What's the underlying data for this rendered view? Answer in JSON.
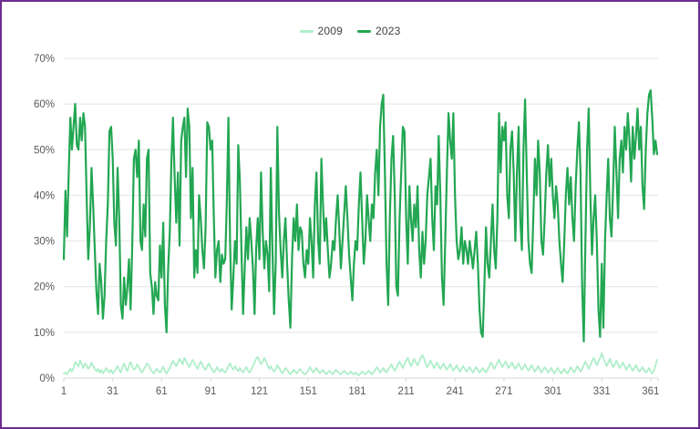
{
  "page": {
    "background": "#ffffff",
    "border_color": "#6c2d91"
  },
  "legend": {
    "position": "top-center",
    "items": [
      {
        "label": "2009",
        "color": "#aeeec9"
      },
      {
        "label": "2023",
        "color": "#22a652"
      }
    ]
  },
  "chart_data": {
    "type": "line",
    "title": "",
    "xlabel": "",
    "ylabel": "",
    "x_start": 1,
    "xlim": [
      1,
      365
    ],
    "ylim": [
      0,
      70
    ],
    "x_ticks": [
      1,
      31,
      61,
      91,
      121,
      151,
      181,
      211,
      241,
      271,
      301,
      331,
      361
    ],
    "y_ticks": [
      0,
      10,
      20,
      30,
      40,
      50,
      60,
      70
    ],
    "y_tick_labels": [
      "0%",
      "10%",
      "20%",
      "30%",
      "40%",
      "50%",
      "60%",
      "70%"
    ],
    "grid": "horizontal",
    "gridline_color": "#e4e4e4",
    "axis_line_color": "#d9d9d9",
    "tick_color": "#d9d9d9",
    "axis_label_color": "#595959",
    "legend_position": "top-center",
    "series": [
      {
        "name": "2009",
        "color": "#aeeec9",
        "width": 1.8,
        "values": [
          1,
          1.2,
          0.8,
          1.5,
          2,
          1.4,
          2.2,
          3.5,
          3,
          2.5,
          3.8,
          3,
          2.2,
          3.2,
          2.8,
          2,
          2.5,
          3.4,
          2.6,
          2,
          1.5,
          2,
          1.2,
          1.8,
          1,
          1.5,
          2.2,
          1.6,
          1.2,
          1.8,
          1,
          1.4,
          2,
          2.6,
          1.8,
          1.2,
          2.4,
          3.2,
          2.1,
          1.5,
          2.8,
          3.5,
          2.5,
          1.8,
          2.2,
          3,
          2.4,
          1.6,
          1.2,
          1.8,
          2.5,
          3.2,
          2.8,
          2,
          1.5,
          1,
          1.4,
          2,
          1.6,
          1.2,
          1.8,
          2.5,
          1.5,
          1,
          1.6,
          2.2,
          3,
          3.8,
          3.2,
          2.6,
          3.4,
          4.2,
          3.6,
          3,
          4.4,
          3.8,
          3,
          2.4,
          3.2,
          4,
          3.4,
          2.6,
          2,
          2.8,
          3.6,
          3,
          2.2,
          1.8,
          2.6,
          3.2,
          2.4,
          1.8,
          1.2,
          1.6,
          2.4,
          1.8,
          1.4,
          2,
          1.5,
          1.2,
          1.8,
          2.6,
          3.2,
          2.4,
          1.8,
          2.6,
          2,
          1.5,
          2.2,
          1.6,
          1.2,
          1.8,
          2.4,
          1.6,
          1.2,
          1.8,
          2.6,
          3.4,
          4.2,
          4.6,
          3.8,
          3,
          3.6,
          4.4,
          3.6,
          2.8,
          2,
          2.6,
          1.8,
          1.4,
          2,
          2.8,
          2.2,
          1.6,
          1,
          1.5,
          2.2,
          1.8,
          1.2,
          0.8,
          1.2,
          1.8,
          1.4,
          1,
          1.5,
          2,
          1.5,
          1,
          0.8,
          1.2,
          1.6,
          2.4,
          1.8,
          1.2,
          1.6,
          2.2,
          1.6,
          1,
          1.4,
          1.8,
          1.2,
          0.8,
          1.2,
          1.6,
          1.2,
          0.8,
          1.4,
          1.8,
          1.4,
          1,
          0.8,
          1.2,
          1.6,
          1.2,
          0.8,
          1,
          1.4,
          1,
          0.8,
          1.2,
          0.8,
          0.6,
          1,
          1.4,
          1,
          0.8,
          1.2,
          1.6,
          1.2,
          0.8,
          1.2,
          1.8,
          2.4,
          1.8,
          1.2,
          1.6,
          2.2,
          1.6,
          1.2,
          1.8,
          2.4,
          3,
          2.2,
          1.6,
          2.2,
          3,
          3.6,
          2.8,
          2.2,
          3,
          3.8,
          4.4,
          3.4,
          2.6,
          3.4,
          4.2,
          3.4,
          2.8,
          3.6,
          4.4,
          5,
          4.2,
          3.2,
          2.4,
          3,
          3.8,
          3,
          2.2,
          2.8,
          3.4,
          2.6,
          2,
          2.6,
          3.2,
          2.4,
          1.8,
          2.4,
          3,
          2.2,
          1.6,
          2.2,
          2.8,
          2,
          1.4,
          2,
          2.6,
          2,
          1.4,
          1.8,
          2.4,
          1.8,
          1.2,
          1.8,
          2.4,
          1.8,
          1.2,
          1.6,
          2.2,
          1.6,
          1.2,
          1.8,
          2.6,
          3.4,
          2.8,
          2,
          2.6,
          3.4,
          4,
          3.2,
          2.4,
          3,
          3.6,
          2.8,
          2.2,
          2.8,
          3.4,
          2.6,
          2,
          2.6,
          3.2,
          2.4,
          1.8,
          2.4,
          3,
          2.2,
          1.6,
          2.2,
          2.8,
          2,
          1.4,
          2,
          2.6,
          1.8,
          1.2,
          1.8,
          2.4,
          1.8,
          1.2,
          1.6,
          2.2,
          1.6,
          1,
          1.6,
          2.2,
          1.6,
          1,
          1.4,
          2,
          1.4,
          1,
          1.6,
          2.4,
          1.8,
          1.2,
          1.8,
          2.6,
          2,
          1.4,
          2,
          2.8,
          3.6,
          2.8,
          2,
          2.8,
          3.6,
          4.4,
          3.6,
          2.8,
          3.6,
          4.4,
          5.4,
          4.4,
          3.4,
          2.6,
          3.4,
          4.2,
          3.2,
          2.4,
          3,
          3.8,
          3,
          2.2,
          2.8,
          3.4,
          2.6,
          1.8,
          2.4,
          3,
          2.2,
          1.6,
          2.2,
          2.8,
          2,
          1.4,
          1.8,
          2.4,
          1.8,
          1.2,
          1.6,
          2.2,
          1.4,
          1,
          1.6,
          2.8,
          4
        ]
      },
      {
        "name": "2023",
        "color": "#22a652",
        "width": 2.2,
        "values": [
          26,
          41,
          31,
          45,
          57,
          50,
          55,
          60,
          51,
          50,
          57,
          52,
          58,
          55,
          40,
          26,
          33,
          46,
          38,
          28,
          19,
          14,
          25,
          21,
          13,
          18,
          30,
          38,
          54,
          55,
          48,
          34,
          29,
          46,
          35,
          16,
          13,
          22,
          16,
          20,
          26,
          15,
          29,
          48,
          50,
          44,
          52,
          30,
          28,
          38,
          31,
          48,
          50,
          23,
          20,
          14,
          21,
          18,
          17,
          29,
          22,
          34,
          16,
          10,
          24,
          32,
          47,
          57,
          44,
          34,
          45,
          29,
          52,
          55,
          57,
          44,
          59,
          55,
          35,
          46,
          22,
          28,
          23,
          40,
          35,
          28,
          24,
          33,
          56,
          55,
          50,
          52,
          36,
          22,
          28,
          30,
          21,
          27,
          25,
          26,
          38,
          57,
          30,
          15,
          22,
          30,
          25,
          51,
          43,
          28,
          14,
          24,
          33,
          26,
          35,
          30,
          24,
          14,
          28,
          35,
          26,
          45,
          32,
          24,
          30,
          27,
          19,
          46,
          28,
          14,
          25,
          55,
          36,
          28,
          22,
          30,
          35,
          25,
          17,
          11,
          26,
          35,
          30,
          38,
          28,
          33,
          32,
          25,
          22,
          28,
          25,
          35,
          30,
          22,
          38,
          45,
          30,
          25,
          48,
          38,
          30,
          35,
          28,
          22,
          25,
          30,
          28,
          35,
          40,
          32,
          24,
          30,
          36,
          42,
          35,
          27,
          22,
          17,
          25,
          30,
          28,
          38,
          45,
          35,
          25,
          30,
          40,
          35,
          30,
          38,
          35,
          45,
          50,
          40,
          55,
          60,
          62,
          45,
          25,
          16,
          35,
          48,
          53,
          40,
          20,
          18,
          35,
          45,
          55,
          54,
          35,
          25,
          42,
          35,
          30,
          38,
          33,
          42,
          28,
          22,
          32,
          25,
          30,
          40,
          44,
          48,
          35,
          28,
          42,
          38,
          53,
          40,
          22,
          16,
          30,
          45,
          58,
          52,
          48,
          58,
          40,
          30,
          26,
          28,
          33,
          25,
          30,
          28,
          25,
          30,
          27,
          24,
          28,
          32,
          25,
          15,
          10,
          9,
          20,
          33,
          25,
          22,
          30,
          38,
          28,
          24,
          35,
          58,
          45,
          55,
          52,
          56,
          40,
          35,
          50,
          54,
          45,
          30,
          45,
          55,
          35,
          28,
          50,
          61,
          45,
          30,
          25,
          23,
          35,
          48,
          40,
          52,
          45,
          30,
          27,
          35,
          45,
          51,
          42,
          48,
          40,
          35,
          42,
          38,
          30,
          25,
          21,
          30,
          40,
          46,
          38,
          44,
          35,
          30,
          42,
          50,
          56,
          45,
          20,
          8,
          30,
          50,
          59,
          40,
          27,
          35,
          40,
          30,
          15,
          9,
          25,
          11,
          30,
          40,
          48,
          35,
          31,
          42,
          55,
          45,
          35,
          48,
          52,
          45,
          55,
          50,
          58,
          52,
          43,
          55,
          48,
          53,
          59,
          50,
          55,
          42,
          37,
          50,
          58,
          62,
          63,
          57,
          49,
          52,
          49
        ]
      }
    ]
  }
}
